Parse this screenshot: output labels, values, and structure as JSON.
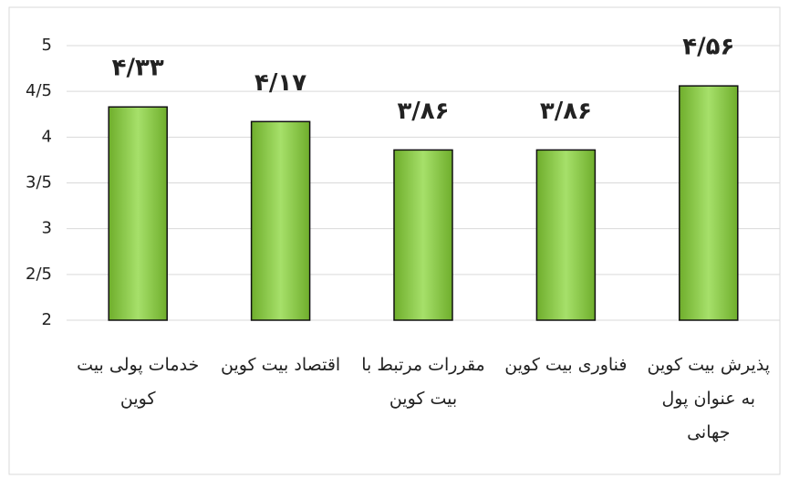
{
  "chart_data": {
    "type": "bar",
    "categories": [
      "خدمات پولی بیت کوین",
      "اقتصاد بیت کوین",
      "مقررات مرتبط با بیت کوین",
      "فناوری بیت کوین",
      "پذیرش بیت کوین به عنوان پول جهانی"
    ],
    "values": [
      4.33,
      4.17,
      3.86,
      3.86,
      4.56
    ],
    "value_labels": [
      "۴/۳۳",
      "۴/۱۷",
      "۳/۸۶",
      "۳/۸۶",
      "۴/۵۶"
    ],
    "color": "#92d050",
    "ylim": [
      2,
      5
    ],
    "yticks": [
      2,
      {
        "value": 2.5,
        "label": "2/5"
      },
      3,
      {
        "value": 3.5,
        "label": "3/5"
      },
      4,
      {
        "value": 4.5,
        "label": "4/5"
      },
      5
    ],
    "grid": true
  }
}
